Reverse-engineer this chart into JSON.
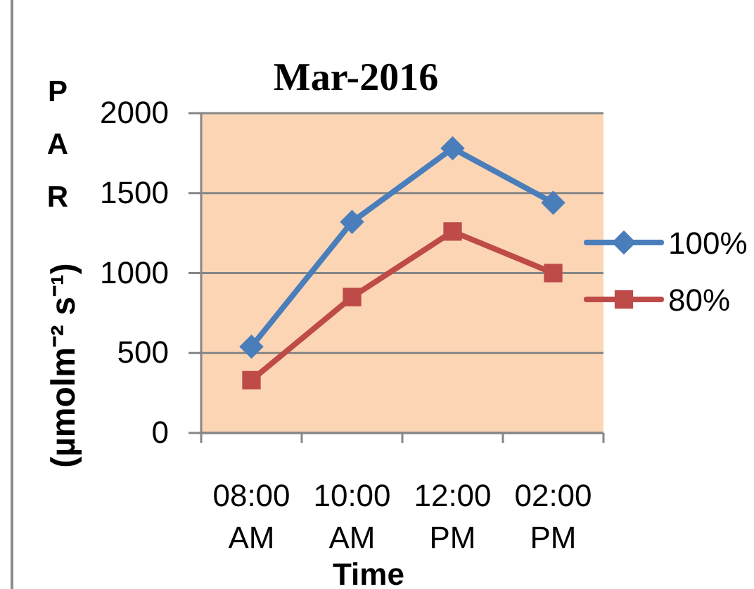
{
  "chart_data": {
    "type": "line",
    "title": "Mar-2016",
    "xlabel": "Time",
    "ylabel": "PAR (µmolm⁻² s⁻¹)",
    "categories": [
      "08:00 AM",
      "10:00 AM",
      "12:00 PM",
      "02:00 PM"
    ],
    "series": [
      {
        "name": "100%",
        "color": "#4a7ebb",
        "marker": "diamond",
        "values": [
          540,
          1320,
          1780,
          1440
        ]
      },
      {
        "name": "80%",
        "color": "#be4b48",
        "marker": "square",
        "values": [
          330,
          850,
          1260,
          1000
        ]
      }
    ],
    "ylim": [
      0,
      2000
    ],
    "yticks": [
      0,
      500,
      1000,
      1500,
      2000
    ],
    "grid": "y",
    "legend": "right"
  }
}
